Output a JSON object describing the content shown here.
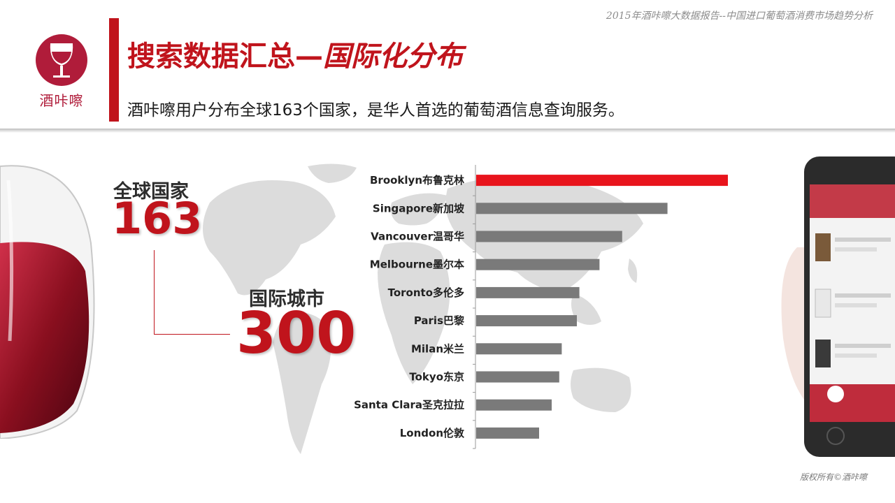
{
  "header": {
    "report_title": "2015年酒咔嚓大数据报告--中国进口葡萄酒消费市场趋势分析",
    "title_main": "搜索数据汇总—",
    "title_italic": "国际化分布",
    "subtitle": "酒咔嚓用户分布全球163个国家，是华人首选的葡萄酒信息查询服务。",
    "logo_text": "酒咔嚓",
    "accent_color": "#c0141c"
  },
  "stats": {
    "countries_label": "全球国家",
    "countries_value": "163",
    "cities_label": "国际城市",
    "cities_value": "300"
  },
  "chart_data": {
    "type": "bar",
    "orientation": "horizontal",
    "categories": [
      "Brooklyn布鲁克林",
      "Singapore新加坡",
      "Vancouver温哥华",
      "Melbourne墨尔本",
      "Toronto多伦多",
      "Paris巴黎",
      "Milan米兰",
      "Tokyo东京",
      "Santa Clara圣克拉拉",
      "London伦敦"
    ],
    "values": [
      100,
      76,
      58,
      49,
      41,
      40,
      34,
      33,
      30,
      25
    ],
    "highlight_index": 0,
    "colors": {
      "highlight": "#e8141c",
      "default": "#7a7a7a"
    },
    "grid": false
  },
  "footer": {
    "copyright": "版权所有©酒咔嚓"
  }
}
